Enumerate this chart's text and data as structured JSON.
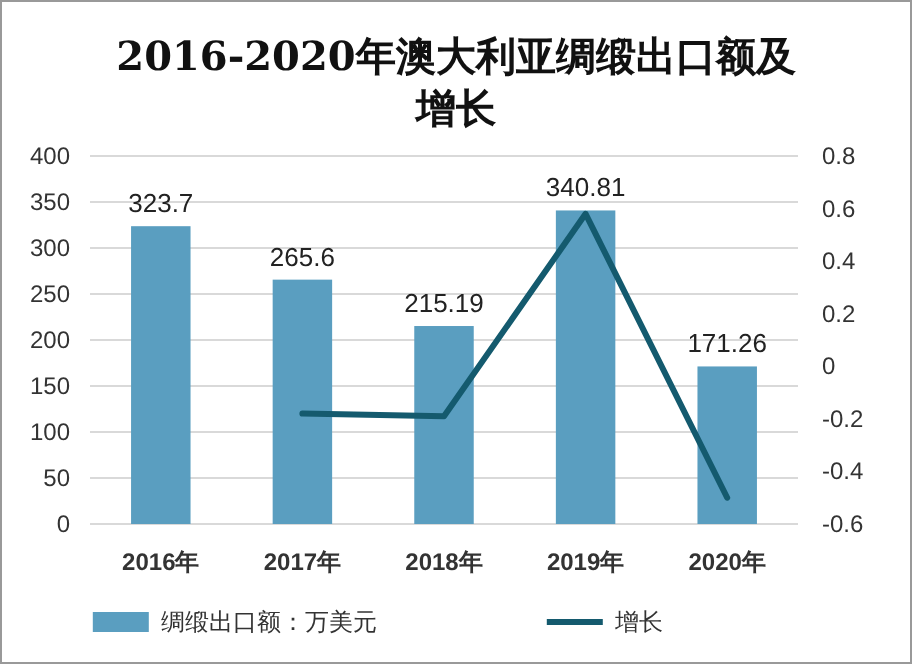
{
  "chart_data": {
    "type": "bar",
    "title": "2016-2020年澳大利亚绸缎出口额及增长",
    "categories": [
      "2016年",
      "2017年",
      "2018年",
      "2019年",
      "2020年"
    ],
    "series": [
      {
        "name": "绸缎出口额：万美元",
        "color": "#5a9ec0",
        "values": [
          323.7,
          265.6,
          215.19,
          340.81,
          171.26
        ],
        "value_labels": [
          "323.7",
          "265.6",
          "215.19",
          "340.81",
          "171.26"
        ]
      },
      {
        "name": "增长",
        "type": "line",
        "axis": "y2",
        "color": "#145a6e",
        "values": [
          null,
          -0.18,
          -0.19,
          0.58,
          -0.5
        ]
      }
    ],
    "ylim": [
      0,
      400
    ],
    "yticks": [
      0,
      50,
      100,
      150,
      200,
      250,
      300,
      350,
      400
    ],
    "y2lim": [
      -0.6,
      0.8
    ],
    "y2ticks": [
      -0.6,
      -0.4,
      -0.2,
      0,
      0.2,
      0.4,
      0.6,
      0.8
    ],
    "grid": "y",
    "legend": "bottom"
  }
}
